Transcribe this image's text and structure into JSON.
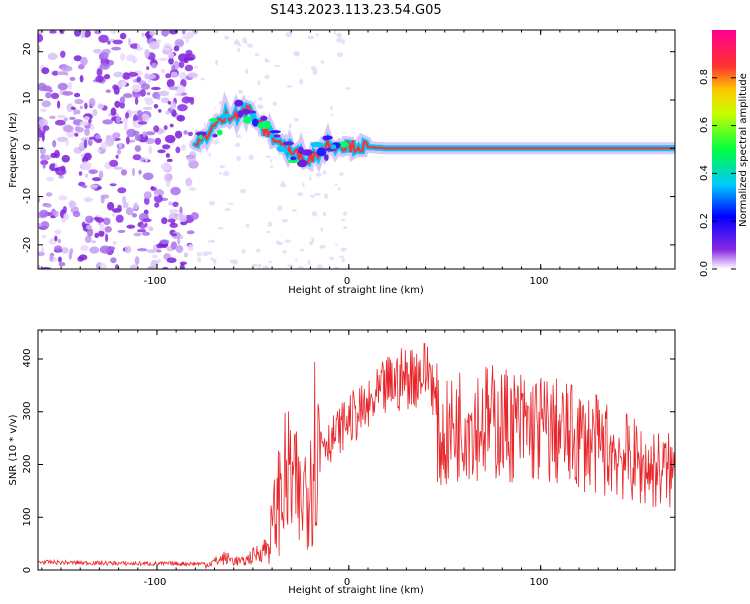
{
  "page": {
    "title": "S143.2023.113.23.54.G05"
  },
  "chart_data": [
    {
      "type": "heatmap",
      "title": "S143.2023.113.23.54.G05",
      "xlabel": "Height of straight line (km)",
      "ylabel": "Frequency (Hz)",
      "xlim": [
        -162,
        170
      ],
      "ylim": [
        -25,
        24.5
      ],
      "xticks": [
        "-100",
        "0",
        "100"
      ],
      "yticks": [
        "20",
        "10",
        "0",
        "-10",
        "-20"
      ],
      "colorbar": {
        "label": "Normalized spectral amplitude",
        "ticks": [
          "0.0",
          "0.2",
          "0.4",
          "0.6",
          "0.8"
        ],
        "range": [
          0,
          1
        ],
        "colormap": "rainbow (purple-blue-cyan-green-yellow-orange-red-magenta)"
      },
      "features": {
        "noise_region_x": [
          -162,
          -80
        ],
        "signal_track": [
          {
            "x": -80,
            "y": 0
          },
          {
            "x": -72,
            "y": 4
          },
          {
            "x": -62,
            "y": 7
          },
          {
            "x": -52,
            "y": 8
          },
          {
            "x": -45,
            "y": 4
          },
          {
            "x": -38,
            "y": 2
          },
          {
            "x": -30,
            "y": -1
          },
          {
            "x": -20,
            "y": -2
          },
          {
            "x": -10,
            "y": 1
          },
          {
            "x": 0,
            "y": 0.5
          },
          {
            "x": 20,
            "y": 0
          },
          {
            "x": 100,
            "y": 0
          },
          {
            "x": 170,
            "y": 0
          }
        ]
      },
      "colors": {
        "noise": "#8a2be2",
        "track_core": "#ff3030",
        "track_edge": "#00c8ff"
      }
    },
    {
      "type": "line",
      "xlabel": "Height of straight line (km)",
      "ylabel": "SNR (10 * v/v)",
      "xlim": [
        -162,
        170
      ],
      "ylim": [
        0,
        455
      ],
      "xticks": [
        "-100",
        "0",
        "100"
      ],
      "yticks": [
        "0",
        "100",
        "200",
        "300",
        "400"
      ],
      "series_color": "#e8262a",
      "envelope": [
        {
          "x": -162,
          "y": 15
        },
        {
          "x": -110,
          "y": 12
        },
        {
          "x": -75,
          "y": 12
        },
        {
          "x": -65,
          "y": 30
        },
        {
          "x": -55,
          "y": 20
        },
        {
          "x": -42,
          "y": 60
        },
        {
          "x": -35,
          "y": 200
        },
        {
          "x": -30,
          "y": 220
        },
        {
          "x": -25,
          "y": 150
        },
        {
          "x": -18,
          "y": 300
        },
        {
          "x": -10,
          "y": 280
        },
        {
          "x": 0,
          "y": 330
        },
        {
          "x": 10,
          "y": 350
        },
        {
          "x": 20,
          "y": 400
        },
        {
          "x": 30,
          "y": 420
        },
        {
          "x": 43,
          "y": 435
        },
        {
          "x": 47,
          "y": 260
        },
        {
          "x": 60,
          "y": 310
        },
        {
          "x": 80,
          "y": 300
        },
        {
          "x": 100,
          "y": 290
        },
        {
          "x": 120,
          "y": 270
        },
        {
          "x": 140,
          "y": 240
        },
        {
          "x": 155,
          "y": 210
        },
        {
          "x": 170,
          "y": 200
        }
      ]
    }
  ]
}
